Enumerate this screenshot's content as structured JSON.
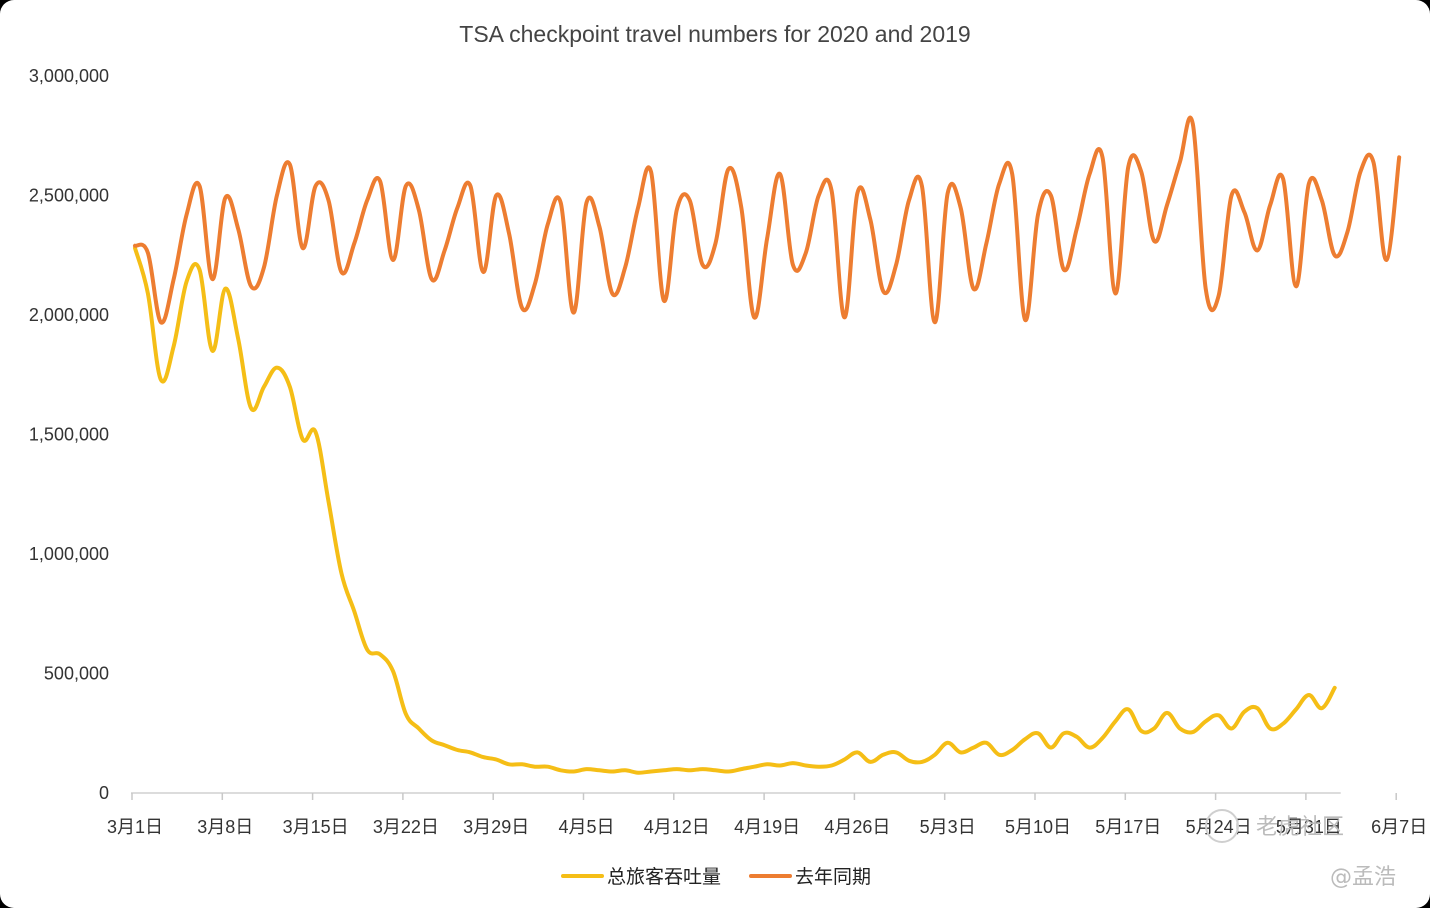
{
  "chart_data": {
    "type": "line",
    "title": "TSA checkpoint travel numbers for 2020 and 2019",
    "xlabel": "",
    "ylabel": "",
    "ylim": [
      0,
      3000000
    ],
    "y_ticks": [
      "0",
      "500,000",
      "1,000,000",
      "1,500,000",
      "2,000,000",
      "2,500,000",
      "3,000,000"
    ],
    "x_ticks": [
      "3月1日",
      "3月8日",
      "3月15日",
      "3月22日",
      "3月29日",
      "4月5日",
      "4月12日",
      "4月19日",
      "4月26日",
      "5月3日",
      "5月10日",
      "5月17日",
      "5月24日",
      "5月31日",
      "6月7日"
    ],
    "x_tick_day_index": [
      0,
      7,
      14,
      21,
      28,
      35,
      42,
      49,
      56,
      63,
      70,
      77,
      84,
      91,
      98
    ],
    "grid": false,
    "legend_position": "bottom",
    "series": [
      {
        "name": "总旅客吞吐量",
        "color": "#F5BE16",
        "values": [
          2280000,
          2090000,
          1730000,
          1870000,
          2140000,
          2190000,
          1850000,
          2110000,
          1900000,
          1610000,
          1700000,
          1780000,
          1700000,
          1480000,
          1510000,
          1220000,
          920000,
          760000,
          600000,
          580000,
          510000,
          330000,
          270000,
          220000,
          200000,
          180000,
          170000,
          150000,
          140000,
          120000,
          120000,
          110000,
          110000,
          95000,
          90000,
          100000,
          95000,
          90000,
          95000,
          85000,
          90000,
          95000,
          100000,
          95000,
          100000,
          95000,
          90000,
          100000,
          110000,
          120000,
          115000,
          125000,
          115000,
          110000,
          115000,
          140000,
          170000,
          130000,
          160000,
          170000,
          135000,
          130000,
          160000,
          210000,
          170000,
          190000,
          210000,
          160000,
          180000,
          225000,
          250000,
          190000,
          250000,
          235000,
          190000,
          230000,
          300000,
          350000,
          260000,
          270000,
          335000,
          270000,
          255000,
          300000,
          325000,
          270000,
          340000,
          355000,
          270000,
          290000,
          350000,
          410000,
          355000,
          440000
        ]
      },
      {
        "name": "去年同期",
        "color": "#ED7D31",
        "values": [
          2290000,
          2260000,
          1970000,
          2150000,
          2420000,
          2540000,
          2150000,
          2490000,
          2360000,
          2120000,
          2200000,
          2500000,
          2630000,
          2280000,
          2540000,
          2480000,
          2180000,
          2300000,
          2480000,
          2560000,
          2230000,
          2540000,
          2440000,
          2150000,
          2270000,
          2450000,
          2540000,
          2180000,
          2500000,
          2340000,
          2030000,
          2130000,
          2380000,
          2470000,
          2010000,
          2470000,
          2370000,
          2090000,
          2200000,
          2450000,
          2600000,
          2060000,
          2440000,
          2480000,
          2210000,
          2300000,
          2610000,
          2450000,
          1990000,
          2320000,
          2590000,
          2210000,
          2260000,
          2500000,
          2520000,
          1990000,
          2510000,
          2400000,
          2100000,
          2210000,
          2480000,
          2540000,
          1970000,
          2510000,
          2450000,
          2110000,
          2300000,
          2550000,
          2590000,
          1980000,
          2420000,
          2500000,
          2190000,
          2360000,
          2590000,
          2660000,
          2090000,
          2620000,
          2600000,
          2310000,
          2460000,
          2640000,
          2800000,
          2110000,
          2080000,
          2500000,
          2430000,
          2270000,
          2460000,
          2570000,
          2120000,
          2550000,
          2480000,
          2250000,
          2350000,
          2600000,
          2640000,
          2230000,
          2660000
        ]
      }
    ]
  },
  "watermarks": {
    "center_text": "老虎社区",
    "author_text": "@孟浩"
  }
}
